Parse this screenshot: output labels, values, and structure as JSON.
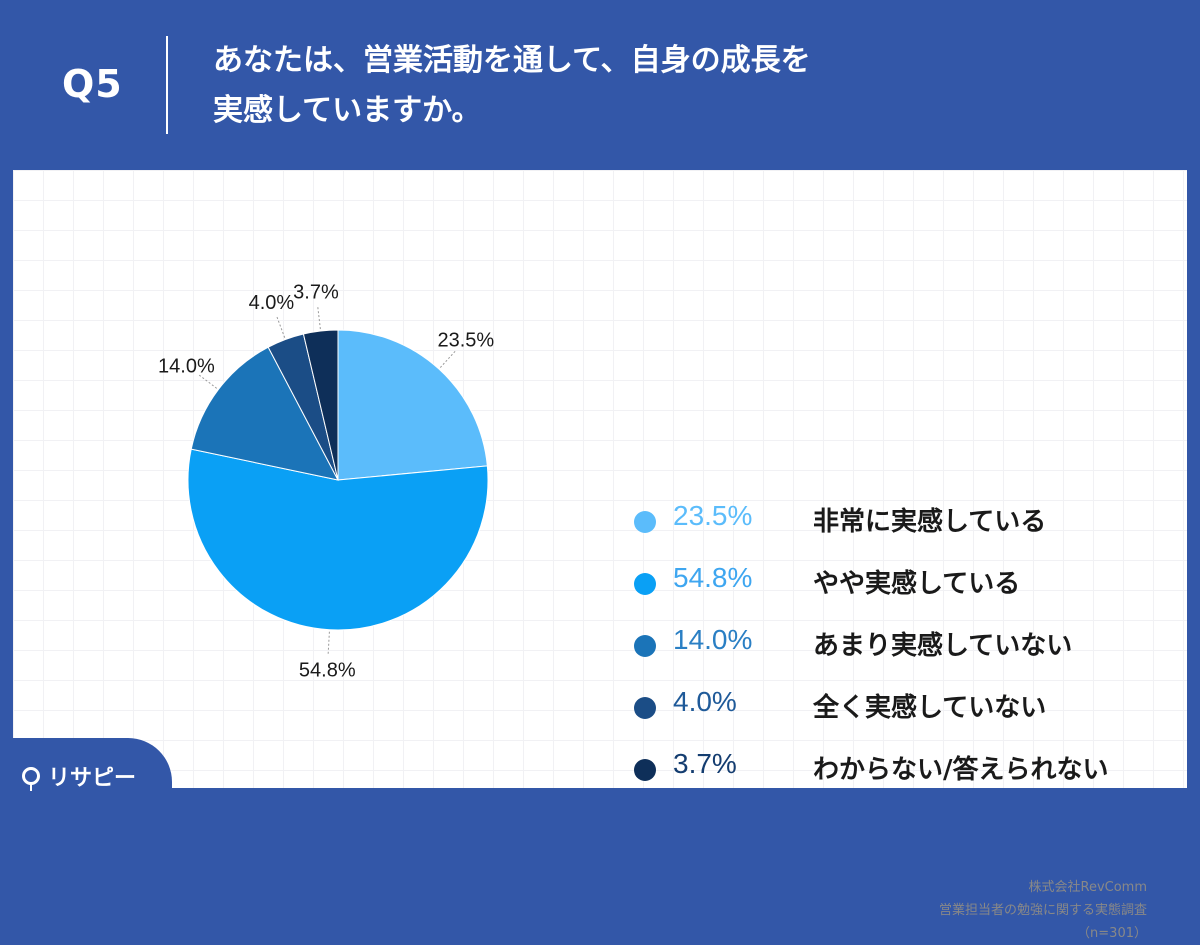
{
  "header": {
    "question_number": "Q5",
    "question_line1": "あなたは、営業活動を通して、自身の成長を",
    "question_line2": "実感していますか。"
  },
  "chart_data": {
    "type": "pie",
    "title": "",
    "slices": [
      {
        "label": "非常に実感している",
        "value": 23.5,
        "pct_text": "23.5%",
        "color": "#5bbcfb"
      },
      {
        "label": "やや実感している",
        "value": 54.8,
        "pct_text": "54.8%",
        "color": "#0aa0f5"
      },
      {
        "label": "あまり実感していない",
        "value": 14.0,
        "pct_text": "14.0%",
        "color": "#1b74b8"
      },
      {
        "label": "全く実感していない",
        "value": 4.0,
        "pct_text": "4.0%",
        "color": "#1b4d86"
      },
      {
        "label": "わからない/答えられない",
        "value": 3.7,
        "pct_text": "3.7%",
        "color": "#0e2f59"
      }
    ],
    "legend_position": "right"
  },
  "legend_pct_colors": [
    "#5bbcfb",
    "#3ea6f0",
    "#2a7fc4",
    "#1f5a99",
    "#143d70"
  ],
  "footer": {
    "company": "株式会社RevComm",
    "survey": "営業担当者の勉強に関する実態調査",
    "sample": "（n=301）"
  },
  "brand": {
    "name": "リサピー"
  }
}
